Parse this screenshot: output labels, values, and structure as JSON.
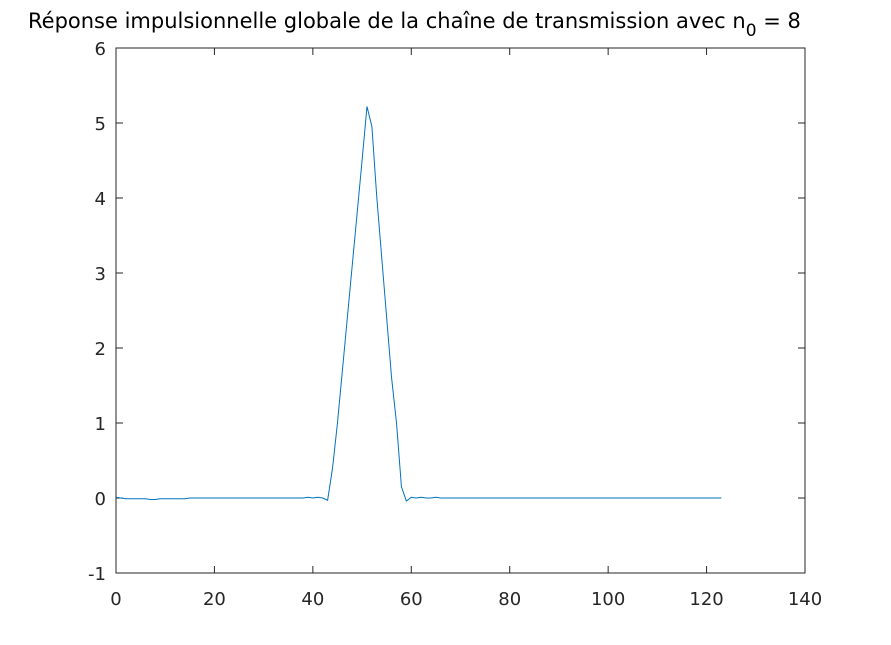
{
  "chart_data": {
    "type": "line",
    "title": "Réponse impulsionnelle globale de la chaîne de transmission avec n",
    "title_subscript": "0",
    "title_suffix": " = 8",
    "xlabel": "",
    "ylabel": "",
    "xlim": [
      0,
      140
    ],
    "ylim": [
      -1,
      6
    ],
    "xticks": [
      0,
      20,
      40,
      60,
      80,
      100,
      120,
      140
    ],
    "yticks": [
      -1,
      0,
      1,
      2,
      3,
      4,
      5,
      6
    ],
    "grid": false,
    "line_color": "#0072bd",
    "series": [
      {
        "x": [
          0,
          1,
          2,
          3,
          4,
          5,
          6,
          7,
          8,
          9,
          10,
          11,
          12,
          13,
          14,
          15,
          16,
          17,
          18,
          19,
          20,
          21,
          22,
          23,
          24,
          25,
          26,
          27,
          28,
          29,
          30,
          31,
          32,
          33,
          34,
          35,
          36,
          37,
          38,
          39,
          40,
          41,
          42,
          43,
          44,
          45,
          46,
          47,
          48,
          49,
          50,
          51,
          52,
          53,
          54,
          55,
          56,
          57,
          58,
          59,
          60,
          61,
          62,
          63,
          64,
          65,
          66,
          67,
          68,
          69,
          70,
          71,
          72,
          73,
          74,
          75,
          76,
          77,
          78,
          79,
          80,
          81,
          82,
          83,
          84,
          85,
          86,
          87,
          88,
          89,
          90,
          91,
          92,
          93,
          94,
          95,
          96,
          97,
          98,
          99,
          100,
          101,
          102,
          103,
          104,
          105,
          106,
          107,
          108,
          109,
          110,
          111,
          112,
          113,
          114,
          115,
          116,
          117,
          118,
          119,
          120,
          121,
          122,
          123
        ],
        "values": [
          0.01,
          0.0,
          -0.01,
          -0.01,
          -0.01,
          -0.01,
          -0.01,
          -0.02,
          -0.02,
          -0.01,
          -0.01,
          -0.01,
          -0.01,
          -0.01,
          -0.01,
          0.0,
          0.0,
          0.0,
          0.0,
          0.0,
          0.0,
          0.0,
          0.0,
          0.0,
          0.0,
          0.0,
          0.0,
          0.0,
          0.0,
          0.0,
          0.0,
          0.0,
          0.0,
          0.0,
          0.0,
          0.0,
          0.0,
          0.0,
          0.0,
          0.01,
          0.0,
          0.01,
          0.0,
          -0.03,
          0.4,
          1.0,
          1.7,
          2.4,
          3.1,
          3.8,
          4.5,
          5.22,
          4.95,
          4.0,
          3.2,
          2.4,
          1.6,
          1.0,
          0.15,
          -0.04,
          0.01,
          0.0,
          0.01,
          0.0,
          0.0,
          0.01,
          0.0,
          0.0,
          0.0,
          0.0,
          0.0,
          0.0,
          0.0,
          0.0,
          0.0,
          0.0,
          0.0,
          0.0,
          0.0,
          0.0,
          0.0,
          0.0,
          0.0,
          0.0,
          0.0,
          0.0,
          0.0,
          0.0,
          0.0,
          0.0,
          0.0,
          0.0,
          0.0,
          0.0,
          0.0,
          0.0,
          0.0,
          0.0,
          0.0,
          0.0,
          0.0,
          0.0,
          0.0,
          0.0,
          0.0,
          0.0,
          0.0,
          0.0,
          0.0,
          0.0,
          0.0,
          0.0,
          0.0,
          0.0,
          0.0,
          0.0,
          0.0,
          0.0,
          0.0,
          0.0,
          0.0,
          0.0,
          0.0,
          0.0
        ]
      }
    ]
  }
}
